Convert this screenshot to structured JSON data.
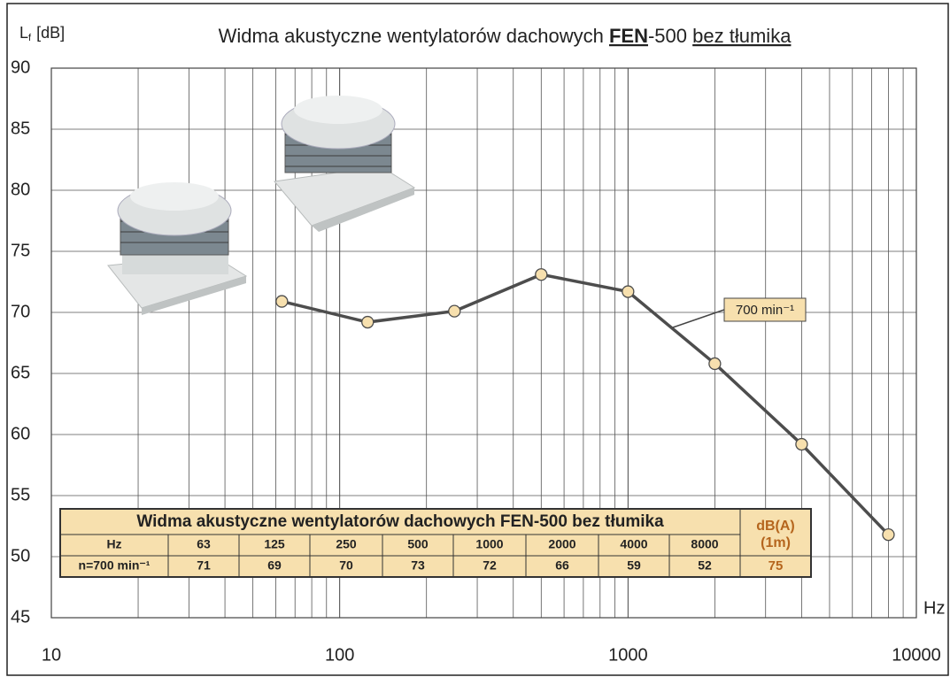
{
  "chart_data": {
    "type": "line",
    "title": {
      "text": "Widma akustyczne wentylatorów dachowych",
      "brand": "FEN",
      "model": "-500",
      "suffix": "bez tłumika"
    },
    "ylabel": {
      "symbol": "L",
      "subscript": "f",
      "unit": "[dB]"
    },
    "xlabel": "Hz",
    "xscale": "log",
    "grid": true,
    "x": [
      63,
      125,
      250,
      500,
      1000,
      2000,
      4000,
      8000
    ],
    "series": [
      {
        "name": "700 min⁻¹",
        "color": "#4d4d4d",
        "marker_color": "#f7e0ae",
        "values": [
          70.9,
          69.2,
          70.1,
          73.1,
          71.7,
          65.8,
          59.2,
          51.8
        ]
      }
    ],
    "xlim": [
      10,
      10000
    ],
    "ylim": [
      45,
      90
    ],
    "xticks": [
      10,
      100,
      1000,
      10000
    ],
    "xminorticks": [
      20,
      30,
      40,
      50,
      60,
      70,
      80,
      90,
      200,
      300,
      400,
      500,
      600,
      700,
      800,
      900,
      2000,
      3000,
      4000,
      5000,
      6000,
      7000,
      8000,
      9000
    ],
    "yticks": [
      45,
      50,
      55,
      60,
      65,
      70,
      75,
      80,
      85,
      90
    ],
    "table": {
      "title": "Widma akustyczne wentylatorów dachowych FEN-500 bez tłumika",
      "header": [
        "Hz",
        63,
        125,
        250,
        500,
        1000,
        2000,
        4000,
        8000
      ],
      "row": [
        "n=700 min⁻¹",
        71,
        69,
        70,
        73,
        72,
        66,
        59,
        52
      ],
      "total_header": [
        "dB(A)",
        "(1m)"
      ],
      "total": 75
    }
  }
}
